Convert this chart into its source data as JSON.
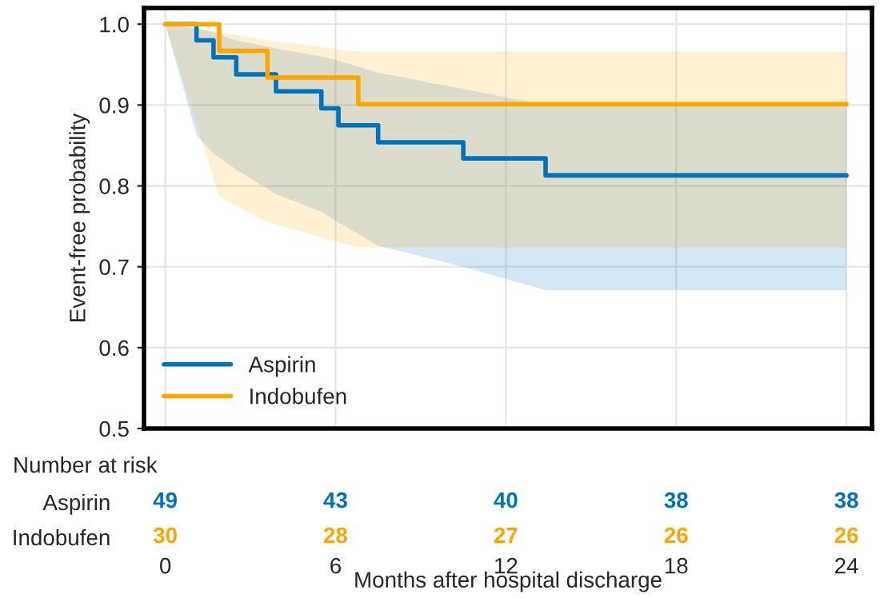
{
  "chart_data": [
    {
      "type": "step",
      "ylabel": "Event-free probability",
      "xlim": [
        -0.75,
        24.9
      ],
      "xticks": [
        0,
        6,
        12,
        18,
        24
      ],
      "ylim": [
        0.5,
        1.02
      ],
      "yticks": [
        0.5,
        0.6,
        0.7,
        0.8,
        0.9,
        {
          "value": 1.0,
          "label": "1.0"
        }
      ],
      "grid": true,
      "legend": "bottom left",
      "xlabel": "Months after hospital discharge",
      "line_style": "solid",
      "marker": "none",
      "series": [
        {
          "name": "Aspirin",
          "color": "#0072bd",
          "x": [
            0,
            1.1,
            1.7,
            2.5,
            3.9,
            5.5,
            6.1,
            7.5,
            10.5,
            13.4,
            24
          ],
          "values": [
            1.0,
            0.98,
            0.959,
            0.938,
            0.917,
            0.896,
            0.875,
            0.854,
            0.834,
            0.813,
            0.813
          ],
          "lower": [
            1.0,
            0.863,
            0.84,
            0.82,
            0.79,
            0.768,
            0.755,
            0.726,
            0.7,
            0.671,
            0.671
          ],
          "upper": [
            1.0,
            0.995,
            0.99,
            0.98,
            0.97,
            0.96,
            0.955,
            0.94,
            0.92,
            0.9,
            0.9
          ]
        },
        {
          "name": "Indobufen",
          "color": "#ffa500",
          "x": [
            0,
            1.9,
            3.6,
            6.8,
            24
          ],
          "values": [
            1.0,
            0.967,
            0.934,
            0.901,
            0.901
          ],
          "lower": [
            1.0,
            0.787,
            0.755,
            0.724,
            0.724
          ],
          "upper": [
            1.0,
            0.99,
            0.98,
            0.966,
            0.966
          ]
        }
      ]
    },
    {
      "type": "heatmap",
      "title": "Number at risk",
      "categories": [
        null,
        null,
        null,
        null,
        null
      ],
      "y_categories": [
        "Aspirin",
        "Indobufen"
      ],
      "colors": [
        "#0072bd",
        "#ffa500"
      ],
      "data_labels": true,
      "cells": [
        [
          49,
          43,
          40,
          38,
          38
        ],
        [
          30,
          28,
          27,
          26,
          26
        ]
      ]
    }
  ]
}
